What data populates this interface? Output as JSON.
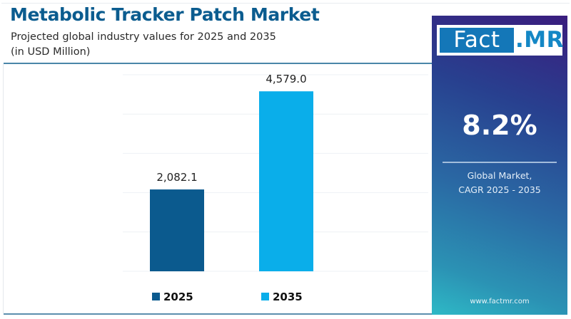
{
  "header": {
    "title": "Metabolic Tracker Patch Market",
    "subtitle_line1": "Projected global industry values for 2025 and 2035",
    "subtitle_line2": "(in USD Million)"
  },
  "side_panel": {
    "logo_left": "Fact",
    "logo_right": ".MR",
    "cagr_value": "8.2%",
    "caption_line1": "Global Market,",
    "caption_line2": "CAGR 2025 - 2035",
    "url": "www.factmr.com"
  },
  "chart_data": {
    "type": "bar",
    "title": "Metabolic Tracker Patch Market",
    "subtitle": "Projected global industry values for 2025 and 2035 (in USD Million)",
    "categories": [
      "2025",
      "2035"
    ],
    "values": [
      2082.1,
      4579.0
    ],
    "value_labels": [
      "2,082.1",
      "4,579.0"
    ],
    "colors": [
      "#0b5a8e",
      "#0aaeea"
    ],
    "legend": [
      {
        "label": "2025",
        "color": "#0b5a8e"
      },
      {
        "label": "2035",
        "color": "#0aaeea"
      }
    ],
    "legend_position": "bottom",
    "xlabel": "",
    "ylabel": "USD Million",
    "ylim": [
      0,
      5000
    ],
    "grid": true,
    "gridline_count": 6
  }
}
